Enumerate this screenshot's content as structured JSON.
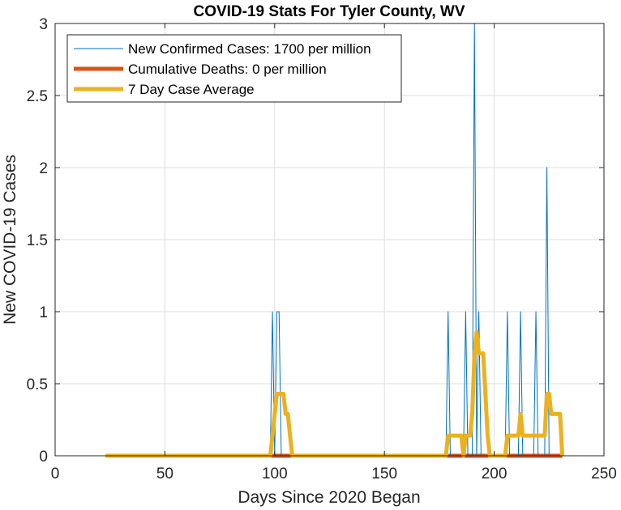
{
  "chart_data": {
    "type": "line",
    "title": "COVID-19 Stats For Tyler County, WV",
    "xlabel": "Days Since 2020 Began",
    "ylabel": "New COVID-19 Cases",
    "xlim": [
      0,
      250
    ],
    "ylim": [
      0,
      3
    ],
    "xticks": [
      0,
      50,
      100,
      150,
      200,
      250
    ],
    "yticks": [
      0,
      0.5,
      1,
      1.5,
      2,
      2.5,
      3
    ],
    "grid": true,
    "legend_position": "top-left",
    "colors": {
      "new_cases": "#0072BD",
      "deaths": "#D95319",
      "average": "#EDB120",
      "grid": "#dfdfdf",
      "axis": "#262626"
    },
    "series": [
      {
        "name": "New Confirmed Cases: 1700 per million",
        "points": [
          [
            23,
            0
          ],
          [
            98,
            0
          ],
          [
            99,
            1
          ],
          [
            100,
            0
          ],
          [
            101,
            1
          ],
          [
            102,
            1
          ],
          [
            103,
            0
          ],
          [
            178,
            0
          ],
          [
            179,
            1
          ],
          [
            180,
            0
          ],
          [
            186,
            0
          ],
          [
            187,
            1
          ],
          [
            188,
            0
          ],
          [
            190,
            0
          ],
          [
            191,
            3
          ],
          [
            192,
            0
          ],
          [
            193,
            1
          ],
          [
            194,
            0
          ],
          [
            205,
            0
          ],
          [
            206,
            1
          ],
          [
            207,
            0
          ],
          [
            211,
            0
          ],
          [
            212,
            1
          ],
          [
            213,
            0
          ],
          [
            218,
            0
          ],
          [
            219,
            1
          ],
          [
            220,
            0
          ],
          [
            223,
            0
          ],
          [
            224,
            2
          ],
          [
            225,
            0
          ],
          [
            231,
            0
          ]
        ]
      },
      {
        "name": "Cumulative Deaths: 0 per million",
        "points": [
          [
            23,
            0
          ],
          [
            231,
            0
          ]
        ]
      },
      {
        "name": "7 Day Case Average",
        "points": [
          [
            23,
            0
          ],
          [
            98,
            0
          ],
          [
            99,
            0.14
          ],
          [
            100,
            0.29
          ],
          [
            101,
            0.43
          ],
          [
            104,
            0.43
          ],
          [
            105,
            0.29
          ],
          [
            106,
            0.29
          ],
          [
            107,
            0.14
          ],
          [
            108,
            0
          ],
          [
            178,
            0
          ],
          [
            179,
            0.14
          ],
          [
            185,
            0.14
          ],
          [
            186,
            0
          ],
          [
            187,
            0.14
          ],
          [
            189,
            0.14
          ],
          [
            190,
            0.29
          ],
          [
            191,
            0.71
          ],
          [
            192,
            0.86
          ],
          [
            193,
            0.71
          ],
          [
            195,
            0.71
          ],
          [
            196,
            0.43
          ],
          [
            197,
            0.14
          ],
          [
            198,
            0
          ],
          [
            205,
            0
          ],
          [
            206,
            0.14
          ],
          [
            210,
            0.14
          ],
          [
            211,
            0.14
          ],
          [
            212,
            0.29
          ],
          [
            213,
            0.14
          ],
          [
            223,
            0.14
          ],
          [
            224,
            0.43
          ],
          [
            225,
            0.43
          ],
          [
            226,
            0.29
          ],
          [
            230,
            0.29
          ],
          [
            231,
            0
          ]
        ]
      }
    ]
  }
}
